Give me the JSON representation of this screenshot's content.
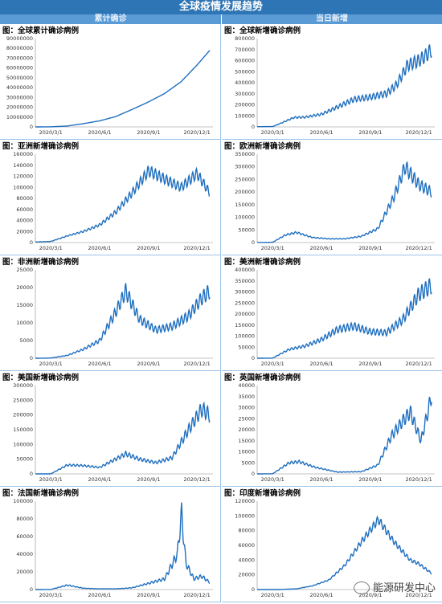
{
  "header": {
    "title": "全球疫情发展趋势",
    "left_col": "累计确诊",
    "right_col": "当日新增"
  },
  "watermark": "能源研发中心",
  "colors": {
    "line": "#1f6fbf",
    "header": "#2e75b6",
    "subheader": "#5b9bd5"
  },
  "chart_data": [
    {
      "id": "global-cumulative",
      "title": "图：全球累计确诊病例",
      "type": "line",
      "ylim": [
        0,
        90000000
      ],
      "yticks": [
        0,
        10000000,
        20000000,
        30000000,
        40000000,
        50000000,
        60000000,
        70000000,
        80000000,
        90000000
      ],
      "xticks": [
        "2020/3/1",
        "2020/6/1",
        "2020/9/1",
        "2020/12/1"
      ],
      "x": [
        "2020/2/1",
        "2020/3/1",
        "2020/4/1",
        "2020/5/1",
        "2020/6/1",
        "2020/7/1",
        "2020/8/1",
        "2020/9/1",
        "2020/10/1",
        "2020/11/1",
        "2020/12/1",
        "2020/12/25"
      ],
      "values": [
        12000,
        90000,
        900000,
        3300000,
        6200000,
        10500000,
        17800000,
        25500000,
        34000000,
        46000000,
        63000000,
        78000000
      ],
      "noise": 0
    },
    {
      "id": "global-daily",
      "title": "图：全球新增确诊病例",
      "type": "line",
      "ylim": [
        0,
        800000
      ],
      "yticks": [
        0,
        100000,
        200000,
        300000,
        400000,
        500000,
        600000,
        700000,
        800000
      ],
      "xticks": [
        "2020/3/1",
        "2020/6/1",
        "2020/9/1",
        "2020/12/1"
      ],
      "x": [
        "2020/2/1",
        "2020/3/1",
        "2020/3/20",
        "2020/4/10",
        "2020/5/1",
        "2020/6/1",
        "2020/7/1",
        "2020/8/1",
        "2020/9/1",
        "2020/10/1",
        "2020/10/20",
        "2020/11/10",
        "2020/12/1",
        "2020/12/15",
        "2020/12/25"
      ],
      "values": [
        2000,
        3000,
        40000,
        85000,
        88000,
        115000,
        180000,
        250000,
        270000,
        300000,
        380000,
        560000,
        600000,
        650000,
        700000
      ],
      "noise": 0.1
    },
    {
      "id": "asia-daily",
      "title": "图：亚洲新增确诊病例",
      "type": "line",
      "ylim": [
        0,
        160000
      ],
      "yticks": [
        0,
        20000,
        40000,
        60000,
        80000,
        100000,
        120000,
        140000,
        160000
      ],
      "xticks": [
        "2020/3/1",
        "2020/6/1",
        "2020/9/1",
        "2020/12/1"
      ],
      "x": [
        "2020/2/1",
        "2020/3/1",
        "2020/4/1",
        "2020/5/1",
        "2020/6/1",
        "2020/7/1",
        "2020/8/1",
        "2020/9/1",
        "2020/10/1",
        "2020/11/1",
        "2020/12/1",
        "2020/12/25"
      ],
      "values": [
        1000,
        2000,
        12000,
        20000,
        32000,
        55000,
        90000,
        130000,
        115000,
        100000,
        125000,
        90000
      ],
      "noise": 0.08
    },
    {
      "id": "europe-daily",
      "title": "图：欧洲新增确诊病例",
      "type": "line",
      "ylim": [
        0,
        350000
      ],
      "yticks": [
        0,
        50000,
        100000,
        150000,
        200000,
        250000,
        300000,
        350000
      ],
      "xticks": [
        "2020/3/1",
        "2020/6/1",
        "2020/9/1",
        "2020/12/1"
      ],
      "x": [
        "2020/2/1",
        "2020/3/1",
        "2020/3/25",
        "2020/4/15",
        "2020/5/15",
        "2020/6/15",
        "2020/7/15",
        "2020/8/15",
        "2020/9/15",
        "2020/10/15",
        "2020/11/5",
        "2020/12/1",
        "2020/12/25"
      ],
      "values": [
        500,
        1000,
        30000,
        40000,
        20000,
        15000,
        15000,
        25000,
        55000,
        180000,
        300000,
        230000,
        200000
      ],
      "noise": 0.1
    },
    {
      "id": "africa-daily",
      "title": "图：非洲新增确诊病例",
      "type": "line",
      "ylim": [
        0,
        25000
      ],
      "yticks": [
        0,
        5000,
        10000,
        15000,
        20000,
        25000
      ],
      "xticks": [
        "2020/3/1",
        "2020/6/1",
        "2020/9/1",
        "2020/12/1"
      ],
      "x": [
        "2020/2/1",
        "2020/3/1",
        "2020/4/1",
        "2020/5/1",
        "2020/6/1",
        "2020/7/1",
        "2020/7/20",
        "2020/8/15",
        "2020/9/15",
        "2020/10/15",
        "2020/11/15",
        "2020/12/10",
        "2020/12/25"
      ],
      "values": [
        0,
        50,
        800,
        2500,
        5000,
        13000,
        19000,
        11000,
        8000,
        9000,
        12000,
        17000,
        19000
      ],
      "noise": 0.12
    },
    {
      "id": "americas-daily",
      "title": "图：美洲新增确诊病例",
      "type": "line",
      "ylim": [
        0,
        400000
      ],
      "yticks": [
        0,
        50000,
        100000,
        150000,
        200000,
        250000,
        300000,
        350000,
        400000
      ],
      "xticks": [
        "2020/3/1",
        "2020/6/1",
        "2020/9/1",
        "2020/12/1"
      ],
      "x": [
        "2020/2/1",
        "2020/3/1",
        "2020/4/1",
        "2020/5/1",
        "2020/6/1",
        "2020/7/1",
        "2020/8/1",
        "2020/9/1",
        "2020/10/1",
        "2020/11/1",
        "2020/12/1",
        "2020/12/25"
      ],
      "values": [
        0,
        500,
        40000,
        55000,
        85000,
        130000,
        145000,
        120000,
        115000,
        175000,
        290000,
        330000
      ],
      "noise": 0.12
    },
    {
      "id": "us-daily",
      "title": "图：美国新增确诊病例",
      "type": "line",
      "ylim": [
        0,
        300000
      ],
      "yticks": [
        0,
        50000,
        100000,
        150000,
        200000,
        250000,
        300000
      ],
      "xticks": [
        "2020/3/1",
        "2020/6/1",
        "2020/9/1",
        "2020/12/1"
      ],
      "x": [
        "2020/2/1",
        "2020/3/1",
        "2020/4/1",
        "2020/5/1",
        "2020/6/1",
        "2020/7/1",
        "2020/7/20",
        "2020/8/15",
        "2020/9/15",
        "2020/10/15",
        "2020/11/15",
        "2020/12/10",
        "2020/12/25"
      ],
      "values": [
        0,
        100,
        30000,
        28000,
        22000,
        50000,
        68000,
        50000,
        38000,
        55000,
        150000,
        220000,
        200000
      ],
      "noise": 0.12
    },
    {
      "id": "uk-daily",
      "title": "图：英国新增确诊病例",
      "type": "line",
      "ylim": [
        0,
        40000
      ],
      "yticks": [
        0,
        5000,
        10000,
        15000,
        20000,
        25000,
        30000,
        35000,
        40000
      ],
      "xticks": [
        "2020/3/1",
        "2020/6/1",
        "2020/9/1",
        "2020/12/1"
      ],
      "x": [
        "2020/2/1",
        "2020/3/1",
        "2020/4/1",
        "2020/4/20",
        "2020/5/20",
        "2020/7/1",
        "2020/8/15",
        "2020/9/15",
        "2020/10/10",
        "2020/11/1",
        "2020/11/15",
        "2020/12/5",
        "2020/12/20",
        "2020/12/25"
      ],
      "values": [
        0,
        50,
        5000,
        5500,
        3000,
        800,
        1000,
        4000,
        17000,
        24000,
        28000,
        15000,
        30000,
        36000
      ],
      "noise": 0.12
    },
    {
      "id": "france-daily",
      "title": "图：法国新增确诊病例",
      "type": "line",
      "ylim": [
        0,
        100000
      ],
      "yticks": [
        0,
        20000,
        40000,
        60000,
        80000,
        100000
      ],
      "xticks": [
        "2020/3/1",
        "2020/6/1",
        "2020/9/1",
        "2020/12/1"
      ],
      "x": [
        "2020/2/1",
        "2020/3/1",
        "2020/4/1",
        "2020/5/1",
        "2020/6/1",
        "2020/7/1",
        "2020/8/1",
        "2020/9/1",
        "2020/10/1",
        "2020/10/25",
        "2020/11/2",
        "2020/11/10",
        "2020/11/25",
        "2020/12/10",
        "2020/12/25"
      ],
      "values": [
        0,
        100,
        5000,
        1500,
        800,
        800,
        2000,
        7000,
        12000,
        40000,
        86000,
        30000,
        12000,
        15000,
        8000
      ],
      "noise": 0.15
    },
    {
      "id": "india-daily",
      "title": "图：印度新增确诊病例",
      "type": "line",
      "ylim": [
        0,
        120000
      ],
      "yticks": [
        0,
        20000,
        40000,
        60000,
        80000,
        100000,
        120000
      ],
      "xticks": [
        "2020/3/1",
        "2020/6/1",
        "2020/9/1",
        "2020/12/1"
      ],
      "x": [
        "2020/2/1",
        "2020/3/15",
        "2020/4/15",
        "2020/5/15",
        "2020/6/15",
        "2020/7/15",
        "2020/8/15",
        "2020/9/16",
        "2020/10/15",
        "2020/11/15",
        "2020/12/1",
        "2020/12/25"
      ],
      "values": [
        0,
        50,
        1000,
        5000,
        13000,
        33000,
        65000,
        95000,
        65000,
        40000,
        35000,
        22000
      ],
      "noise": 0.06
    }
  ]
}
